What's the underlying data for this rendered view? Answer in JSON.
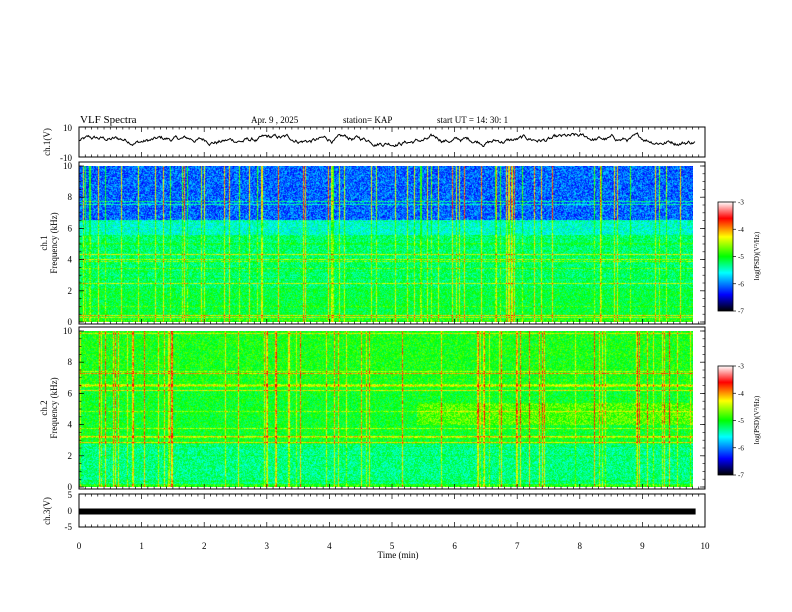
{
  "header": {
    "title": "VLF Spectra",
    "date": "Apr. 9 , 2025",
    "station": "station= KAP",
    "start": "start  UT =  14: 30: 1"
  },
  "chart_data": [
    {
      "type": "line",
      "panel": "ch1-waveform",
      "ylabel": "ch.1(V)",
      "ylim": [
        -10,
        10
      ],
      "yticks": [
        "10",
        "-10"
      ],
      "xlim": [
        0,
        10
      ],
      "x_end": 9.85,
      "approx_range": [
        -3,
        6
      ]
    },
    {
      "type": "heatmap",
      "panel": "ch1-spectrogram",
      "ylabel": "ch.1\nFrequency (kHz)",
      "ylim": [
        0,
        10
      ],
      "yticks": [
        "0",
        "2",
        "4",
        "6",
        "8",
        "10"
      ],
      "xlim": [
        0,
        10
      ],
      "x_end": 9.85,
      "colorbar": {
        "label": "log(PSD)(V²/Hz)",
        "range": [
          -7,
          -3
        ],
        "ticks": [
          "-3",
          "-4",
          "-5",
          "-6",
          "-7"
        ]
      }
    },
    {
      "type": "heatmap",
      "panel": "ch2-spectrogram",
      "ylabel": "ch.2\nFrequency (kHz)",
      "ylim": [
        0,
        10
      ],
      "yticks": [
        "0",
        "2",
        "4",
        "6",
        "8",
        "10"
      ],
      "xlim": [
        0,
        10
      ],
      "x_end": 9.85,
      "colorbar": {
        "label": "log(PSD)(V²/Hz)",
        "range": [
          -7,
          -3
        ],
        "ticks": [
          "-3",
          "-4",
          "-5",
          "-6",
          "-7"
        ]
      }
    },
    {
      "type": "line",
      "panel": "ch3-waveform",
      "ylabel": "ch.3(V)",
      "ylim": [
        -5,
        5
      ],
      "yticks": [
        "5",
        "0",
        "-5"
      ],
      "xlim": [
        0,
        10
      ],
      "x_end": 9.85,
      "constant_value": -0.3
    }
  ],
  "xaxis": {
    "label": "Time  (min)",
    "ticks": [
      "0",
      "1",
      "2",
      "3",
      "4",
      "5",
      "6",
      "7",
      "8",
      "9",
      "10"
    ]
  },
  "colors": {
    "scale": [
      "#000000",
      "#0000ff",
      "#00ffff",
      "#00ff00",
      "#ffff00",
      "#ff0000",
      "#ffffff"
    ]
  }
}
